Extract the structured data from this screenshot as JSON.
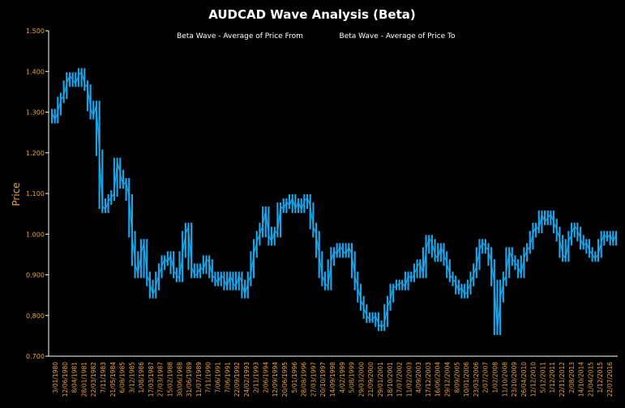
{
  "chart_data": {
    "type": "line",
    "title": "AUDCAD Wave Analysis (Beta)",
    "legend": [
      "Beta Wave - Average of Price From",
      "Beta Wave - Average of Price To"
    ],
    "legend_position": "top",
    "ylabel": "Price",
    "xlabel": "",
    "ylim": [
      0.7,
      1.5
    ],
    "y_ticks": [
      "0.700",
      "0.800",
      "0.900",
      "1.000",
      "1.100",
      "1.200",
      "1.300",
      "1.400",
      "1.500"
    ],
    "x_tick_labels": [
      "3/01/1980",
      "12/06/1980",
      "8/04/1981",
      "28/01/1981",
      "22/03/1982",
      "7/11/1983",
      "21/05/1984",
      "6/08/1985",
      "3/12/1985",
      "1/08/1986",
      "17/03/1987",
      "27/03/1987",
      "15/02/1988",
      "30/06/1988",
      "31/06/1989",
      "11/07/1989",
      "7/11/1990",
      "7/06/1991",
      "7/06/1991",
      "22/09/1992",
      "24/02/1993",
      "2/11/1993",
      "2/06/1994",
      "12/09/1994",
      "20/06/1995",
      "5/01/1996",
      "28/08/1996",
      "27/03/1997",
      "20/10/1997",
      "14/09/1998",
      "4/02/1999",
      "5/08/1999",
      "29/03/2000",
      "21/09/2000",
      "29/01/2001",
      "18/10/2001",
      "17/07/2002",
      "11/02/2003",
      "4/09/2003",
      "17/12/2003",
      "16/06/2004",
      "29/12/2004",
      "8/09/2005",
      "10/01/2006",
      "23/03/2006",
      "2/07/2007",
      "1/02/2008",
      "11/10/2008",
      "23/10/2009",
      "26/04/2010",
      "12/12/2010",
      "5/12/2011",
      "1/12/2011",
      "22/11/2012",
      "2/08/2013",
      "14/10/2014",
      "21/04/2015",
      "1/12/2015",
      "22/07/2016"
    ],
    "series_color": "#1ca3e6",
    "grid": false,
    "series": [
      {
        "values": [
          1.3,
          1.28,
          1.3,
          1.33,
          1.34,
          1.37,
          1.39,
          1.38,
          1.37,
          1.39,
          1.4,
          1.37,
          1.36,
          1.31,
          1.29,
          1.32,
          1.2,
          1.07,
          1.06,
          1.08,
          1.09,
          1.1,
          1.18,
          1.15,
          1.12,
          1.13,
          1.09,
          1.0,
          0.93,
          0.9,
          0.95,
          0.98,
          0.9,
          0.88,
          0.85,
          0.87,
          0.9,
          0.92,
          0.94,
          0.93,
          0.95,
          0.91,
          0.9,
          0.89,
          0.95,
          1.0,
          1.02,
          0.92,
          0.9,
          0.9,
          0.92,
          0.91,
          0.94,
          0.93,
          0.9,
          0.89,
          0.88,
          0.9,
          0.89,
          0.87,
          0.9,
          0.88,
          0.87,
          0.9,
          0.88,
          0.85,
          0.88,
          0.9,
          0.95,
          0.98,
          1.0,
          1.02,
          1.06,
          1.0,
          0.98,
          1.01,
          1.0,
          1.07,
          1.06,
          1.08,
          1.07,
          1.09,
          1.06,
          1.08,
          1.06,
          1.08,
          1.09,
          1.07,
          1.02,
          1.0,
          0.95,
          0.9,
          0.88,
          0.87,
          0.93,
          0.96,
          0.95,
          0.97,
          0.96,
          0.95,
          0.97,
          0.95,
          0.9,
          0.87,
          0.84,
          0.82,
          0.8,
          0.79,
          0.79,
          0.8,
          0.78,
          0.77,
          0.78,
          0.82,
          0.84,
          0.87,
          0.87,
          0.88,
          0.88,
          0.87,
          0.9,
          0.89,
          0.9,
          0.92,
          0.93,
          0.9,
          0.96,
          0.99,
          0.98,
          0.95,
          0.94,
          0.97,
          0.95,
          0.93,
          0.9,
          0.89,
          0.88,
          0.86,
          0.87,
          0.85,
          0.86,
          0.88,
          0.9,
          0.92,
          0.96,
          0.98,
          0.97,
          0.96,
          0.93,
          0.88,
          0.76,
          0.84,
          0.88,
          0.9,
          0.96,
          0.94,
          0.93,
          0.92,
          0.9,
          0.94,
          0.96,
          0.97,
          1.0,
          1.02,
          1.01,
          1.05,
          1.03,
          1.04,
          1.05,
          1.03,
          1.01,
          0.99,
          0.95,
          0.94,
          0.98,
          1.0,
          1.02,
          1.01,
          0.99,
          0.97,
          0.98,
          0.96,
          0.95,
          0.94,
          0.95,
          0.98,
          1.0,
          0.99,
          1.0,
          0.98,
          1.0
        ]
      }
    ]
  }
}
